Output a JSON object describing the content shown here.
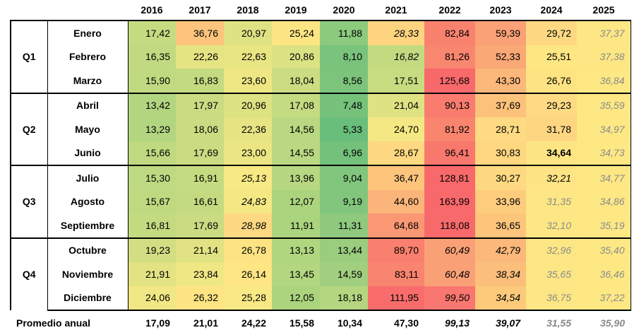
{
  "years": [
    "2016",
    "2017",
    "2018",
    "2019",
    "2020",
    "2021",
    "2022",
    "2023",
    "2024",
    "2025"
  ],
  "quarters": [
    "Q1",
    "Q2",
    "Q3",
    "Q4"
  ],
  "rows": [
    {
      "month": "Enero",
      "q": 0,
      "values": [
        "17,42",
        "36,76",
        "20,97",
        "25,24",
        "11,88",
        "28,33",
        "82,84",
        "59,39",
        "29,72",
        "37,37"
      ],
      "styles": [
        "",
        "",
        "",
        "",
        "",
        "it",
        "",
        "",
        "",
        "proj"
      ],
      "colors": [
        "#c5db81",
        "#fcc47c",
        "#dfe283",
        "#fde584",
        "#8cca7e",
        "#fed481",
        "#f9826f",
        "#fba177",
        "#fed982",
        "#fde784"
      ]
    },
    {
      "month": "Febrero",
      "q": 0,
      "values": [
        "16,35",
        "22,26",
        "22,63",
        "20,86",
        "8,10",
        "16,82",
        "81,26",
        "52,33",
        "25,51",
        "37,38"
      ],
      "styles": [
        "",
        "",
        "",
        "",
        "",
        "it",
        "",
        "",
        "",
        "proj"
      ],
      "colors": [
        "#c1da81",
        "#e5e483",
        "#e8e583",
        "#dbe283",
        "#79c37c",
        "#c3da81",
        "#f9866f",
        "#fba877",
        "#fee683",
        "#fde784"
      ]
    },
    {
      "month": "Marzo",
      "q": 0,
      "values": [
        "15,90",
        "16,83",
        "23,60",
        "18,04",
        "8,56",
        "17,51",
        "125,68",
        "43,30",
        "26,76",
        "36,84"
      ],
      "styles": [
        "",
        "",
        "",
        "",
        "",
        "",
        "",
        "",
        "",
        "proj"
      ],
      "colors": [
        "#c0da81",
        "#c3da81",
        "#ede683",
        "#cbdc82",
        "#7cc47c",
        "#c7db81",
        "#f8696b",
        "#fbb87a",
        "#fee383",
        "#fde884"
      ]
    },
    {
      "month": "Abril",
      "q": 1,
      "values": [
        "13,42",
        "17,97",
        "20,96",
        "17,08",
        "7,48",
        "21,04",
        "90,13",
        "37,69",
        "29,23",
        "35,59"
      ],
      "styles": [
        "",
        "",
        "",
        "",
        "",
        "",
        "",
        "",
        "",
        "proj"
      ],
      "colors": [
        "#b2d680",
        "#cadc82",
        "#dde283",
        "#c4db81",
        "#76c27b",
        "#dee283",
        "#f97c6e",
        "#fcc27b",
        "#feda82",
        "#fde884"
      ]
    },
    {
      "month": "Mayo",
      "q": 1,
      "values": [
        "13,29",
        "18,06",
        "22,36",
        "14,56",
        "5,33",
        "24,70",
        "81,92",
        "28,71",
        "31,78",
        "34,97"
      ],
      "styles": [
        "",
        "",
        "",
        "",
        "",
        "",
        "",
        "",
        "",
        "proj"
      ],
      "colors": [
        "#b2d680",
        "#cadc82",
        "#e6e483",
        "#bad881",
        "#69be7b",
        "#f4e884",
        "#f9856f",
        "#feda82",
        "#fed681",
        "#fde884"
      ]
    },
    {
      "month": "Junio",
      "q": 1,
      "values": [
        "15,66",
        "17,69",
        "23,00",
        "14,55",
        "6,96",
        "28,67",
        "96,41",
        "30,83",
        "34,64",
        "34,73"
      ],
      "styles": [
        "",
        "",
        "",
        "",
        "",
        "",
        "",
        "",
        "bd",
        "proj"
      ],
      "colors": [
        "#bfd981",
        "#c9dc82",
        "#ebe583",
        "#bad881",
        "#73c17b",
        "#fed981",
        "#f9786d",
        "#fed780",
        "#fde584",
        "#fde884"
      ]
    },
    {
      "month": "Julio",
      "q": 2,
      "values": [
        "15,30",
        "16,91",
        "25,13",
        "13,96",
        "9,04",
        "36,47",
        "128,81",
        "30,27",
        "32,21",
        "34,77"
      ],
      "styles": [
        "",
        "",
        "it",
        "",
        "",
        "",
        "",
        "",
        "it",
        "proj"
      ],
      "colors": [
        "#bdd981",
        "#c5db81",
        "#f7e984",
        "#b7d781",
        "#81c67d",
        "#fdc57c",
        "#f8696b",
        "#fed981",
        "#fee484",
        "#fde884"
      ]
    },
    {
      "month": "Agosto",
      "q": 2,
      "values": [
        "15,67",
        "16,61",
        "24,83",
        "12,07",
        "9,19",
        "44,60",
        "163,99",
        "33,96",
        "31,35",
        "34,86"
      ],
      "styles": [
        "",
        "",
        "it",
        "",
        "",
        "",
        "",
        "",
        "proj",
        "proj"
      ],
      "colors": [
        "#bfd981",
        "#c4da81",
        "#f5e884",
        "#acd47f",
        "#82c67d",
        "#fbb57a",
        "#f8696b",
        "#fdcc7d",
        "#fde784",
        "#fde884"
      ]
    },
    {
      "month": "Septiembre",
      "q": 2,
      "values": [
        "16,81",
        "17,69",
        "28,98",
        "11,91",
        "11,31",
        "64,68",
        "118,08",
        "36,65",
        "32,10",
        "35,19"
      ],
      "styles": [
        "",
        "",
        "it",
        "",
        "",
        "",
        "",
        "",
        "proj",
        "proj"
      ],
      "colors": [
        "#c4da81",
        "#c9dc82",
        "#fed882",
        "#abd47f",
        "#8ec97e",
        "#fa9874",
        "#f8696b",
        "#fdc57c",
        "#fde784",
        "#fde884"
      ]
    },
    {
      "month": "Octubre",
      "q": 3,
      "values": [
        "19,23",
        "21,14",
        "26,78",
        "13,13",
        "13,44",
        "89,70",
        "60,49",
        "42,79",
        "32,96",
        "35,40"
      ],
      "styles": [
        "",
        "",
        "",
        "",
        "",
        "",
        "it",
        "it",
        "proj",
        "proj"
      ],
      "colors": [
        "#d1de82",
        "#e0e283",
        "#fee383",
        "#b1d680",
        "#9acd7e",
        "#f97f6e",
        "#faa076",
        "#fbb87a",
        "#fde784",
        "#fde884"
      ]
    },
    {
      "month": "Noviembre",
      "q": 3,
      "values": [
        "21,91",
        "23,84",
        "26,14",
        "13,45",
        "14,59",
        "83,11",
        "60,48",
        "38,34",
        "35,65",
        "36,46"
      ],
      "styles": [
        "",
        "",
        "",
        "",
        "",
        "",
        "it",
        "it",
        "proj",
        "proj"
      ],
      "colors": [
        "#e3e383",
        "#efe784",
        "#fde683",
        "#b3d680",
        "#a0cf7f",
        "#f9846f",
        "#faa076",
        "#fcbf7b",
        "#fde784",
        "#fde884"
      ]
    },
    {
      "month": "Diciembre",
      "q": 3,
      "values": [
        "24,06",
        "26,32",
        "25,28",
        "12,05",
        "18,18",
        "111,95",
        "99,50",
        "34,54",
        "36,75",
        "37,22"
      ],
      "styles": [
        "",
        "",
        "",
        "",
        "",
        "",
        "it",
        "it",
        "proj",
        "proj"
      ],
      "colors": [
        "#f1e784",
        "#fee483",
        "#f9e984",
        "#acd47f",
        "#b4d680",
        "#f86d6c",
        "#f97770",
        "#fdca7c",
        "#fde784",
        "#fde884"
      ]
    }
  ],
  "average": {
    "label": "Promedio anual",
    "values": [
      "17,09",
      "21,01",
      "24,22",
      "15,58",
      "10,34",
      "47,30",
      "99,13",
      "39,07",
      "31,55",
      "35,90"
    ],
    "styles": [
      "",
      "",
      "",
      "",
      "",
      "",
      "it",
      "it",
      "proj",
      "proj"
    ]
  }
}
